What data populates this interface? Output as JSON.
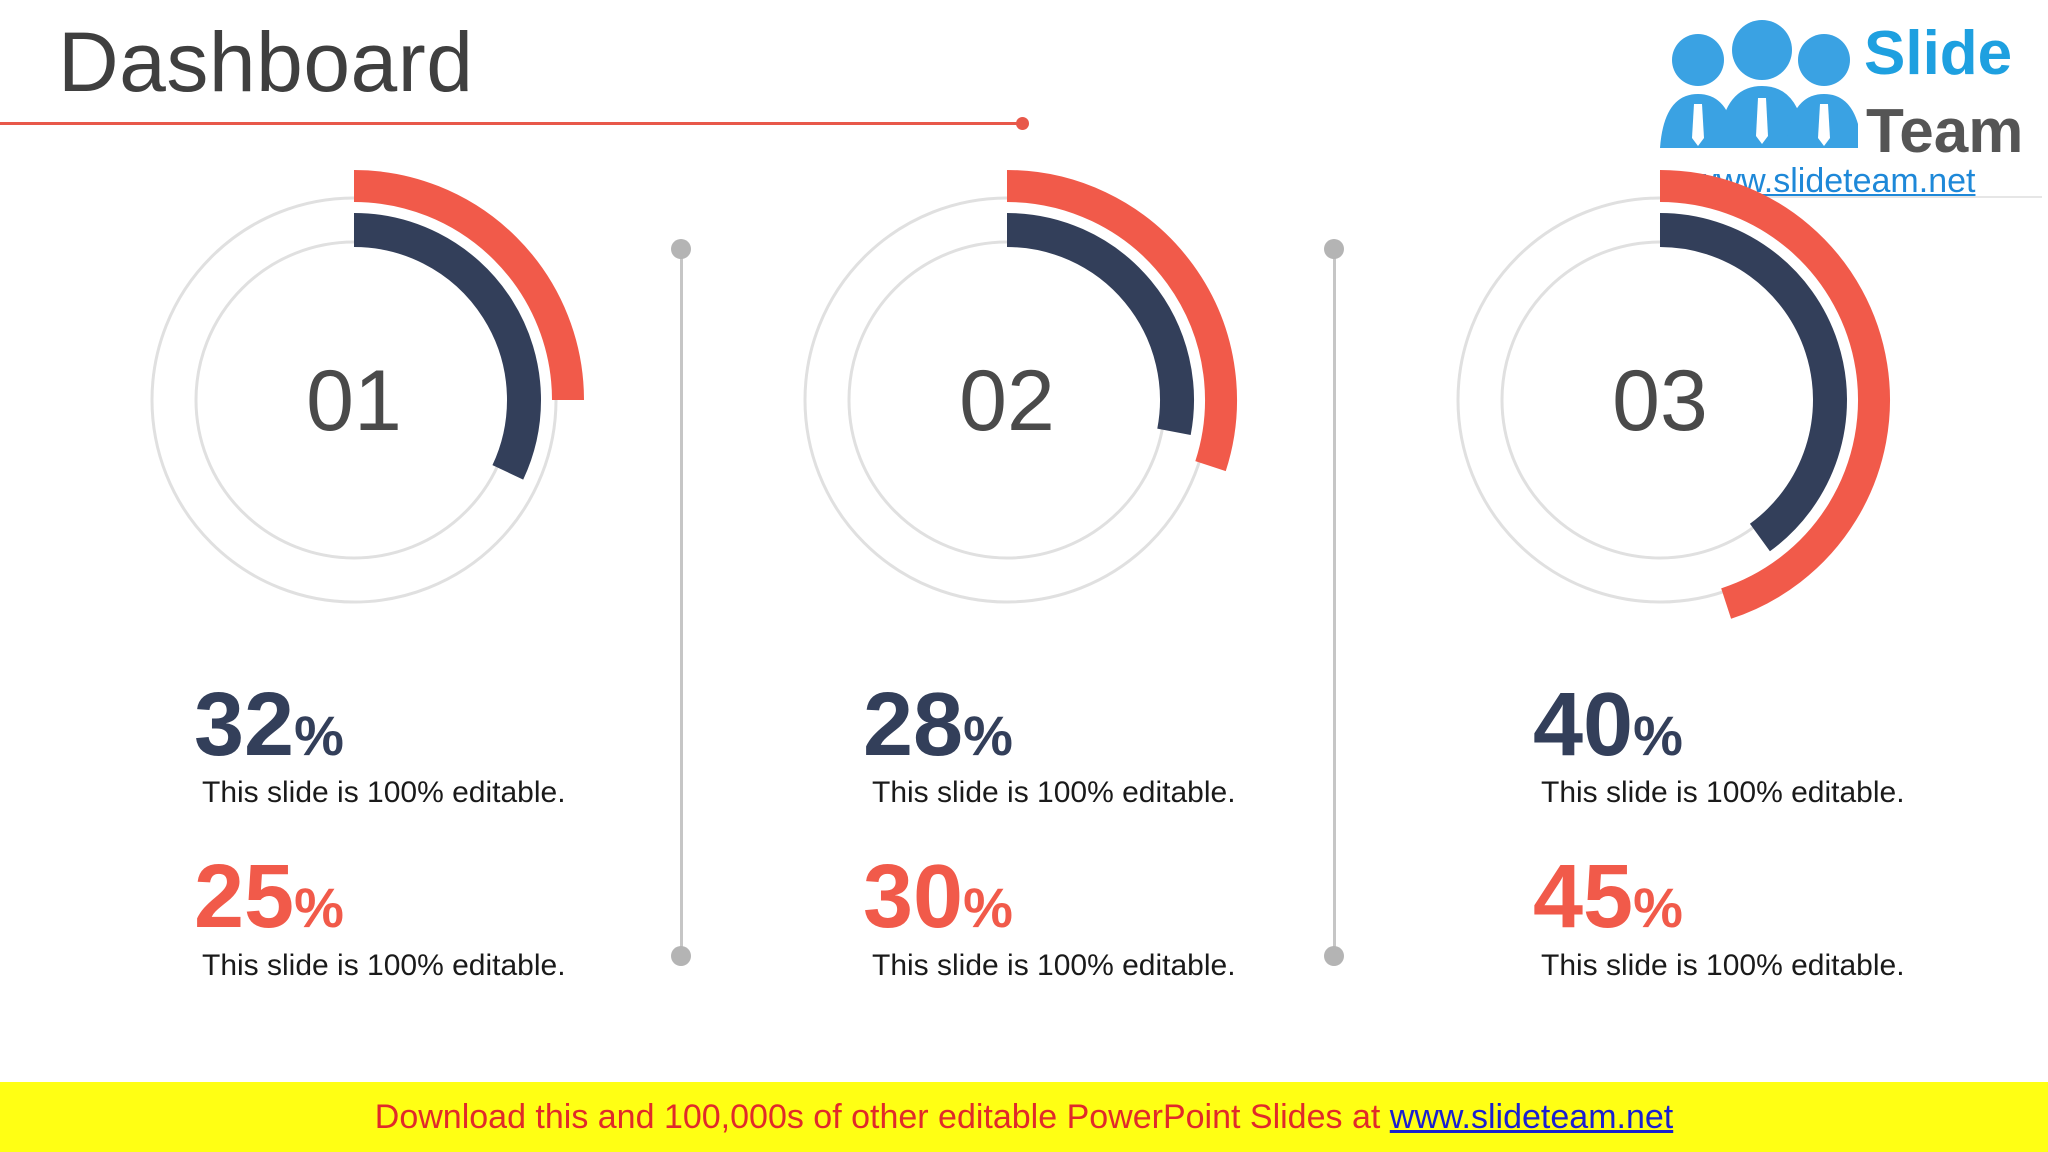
{
  "slide": {
    "title": "Dashboard",
    "logo": {
      "word1": "Slide",
      "word2": "Team",
      "url": "www.slideteam.net"
    }
  },
  "colors": {
    "navy": "#333f5a",
    "red": "#f15a4a",
    "ring": "#e0e0e0",
    "title_rule": "#e8584a"
  },
  "chart_data": [
    {
      "type": "radial-bar",
      "center_label": "01",
      "series": [
        {
          "name": "",
          "values": [
            32
          ],
          "color": "#333f5a"
        },
        {
          "name": "",
          "values": [
            25
          ],
          "color": "#f15a4a"
        }
      ]
    },
    {
      "type": "radial-bar",
      "center_label": "02",
      "series": [
        {
          "name": "",
          "values": [
            28
          ],
          "color": "#333f5a"
        },
        {
          "name": "",
          "values": [
            30
          ],
          "color": "#f15a4a"
        }
      ]
    },
    {
      "type": "radial-bar",
      "center_label": "03",
      "series": [
        {
          "name": "",
          "values": [
            40
          ],
          "color": "#333f5a"
        },
        {
          "name": "",
          "values": [
            45
          ],
          "color": "#f15a4a"
        }
      ]
    }
  ],
  "stats": [
    {
      "navy_value": "32",
      "red_value": "25",
      "percent_sign": "%",
      "text1": "This slide is 100% editable.",
      "text2": "This slide is 100% editable."
    },
    {
      "navy_value": "28",
      "red_value": "30",
      "percent_sign": "%",
      "text1": "This slide is 100% editable.",
      "text2": "This slide is 100% editable."
    },
    {
      "navy_value": "40",
      "red_value": "45",
      "percent_sign": "%",
      "text1": "This slide is 100% editable.",
      "text2": "This slide is 100% editable."
    }
  ],
  "banner": {
    "text": "Download this and 100,000s of other editable PowerPoint Slides at ",
    "link": "www.slideteam.net"
  }
}
